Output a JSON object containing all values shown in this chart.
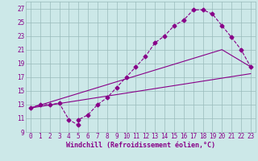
{
  "xlabel": "Windchill (Refroidissement éolien,°C)",
  "bg_color": "#cce8e8",
  "line_color": "#880088",
  "grid_color": "#99bbbb",
  "xlim": [
    -0.5,
    23.5
  ],
  "ylim": [
    9,
    28
  ],
  "xticks": [
    0,
    1,
    2,
    3,
    4,
    5,
    6,
    7,
    8,
    9,
    10,
    11,
    12,
    13,
    14,
    15,
    16,
    17,
    18,
    19,
    20,
    21,
    22,
    23
  ],
  "yticks": [
    9,
    11,
    13,
    15,
    17,
    19,
    21,
    23,
    25,
    27
  ],
  "line1_x": [
    0,
    1,
    2,
    3,
    4,
    5,
    5,
    6,
    7,
    8,
    9,
    10,
    11,
    12,
    13,
    14,
    15,
    16,
    17,
    18,
    19,
    20,
    21,
    22,
    23
  ],
  "line1_y": [
    12.5,
    13,
    13,
    13.2,
    10.8,
    10,
    10.8,
    11.5,
    13,
    14,
    15.5,
    17,
    18.5,
    20,
    22,
    23,
    24.5,
    25.3,
    26.8,
    26.8,
    26.2,
    24.5,
    22.8,
    21,
    18.5
  ],
  "line2_x": [
    0,
    23
  ],
  "line2_y": [
    12.5,
    17.5
  ],
  "line3_x": [
    0,
    20,
    23
  ],
  "line3_y": [
    12.5,
    21,
    18.5
  ],
  "marker": "D",
  "marker_size": 2.5,
  "tick_fontsize": 5.5,
  "xlabel_fontsize": 6.0
}
